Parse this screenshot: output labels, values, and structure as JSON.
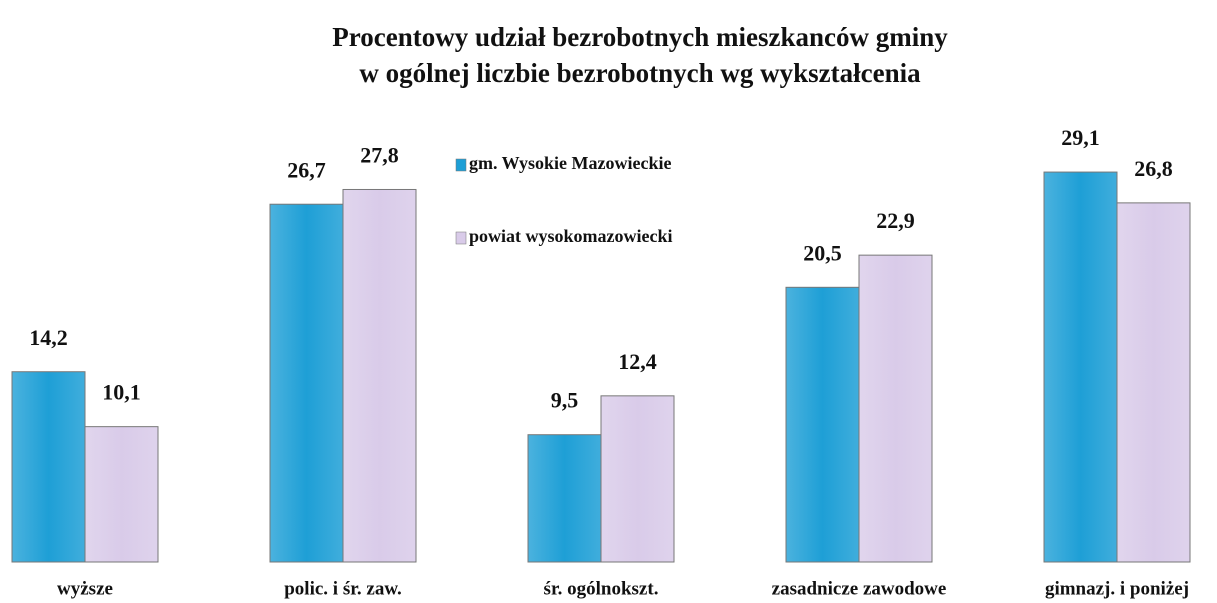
{
  "chart_data": {
    "type": "bar",
    "title": [
      "Procentowy udział bezrobotnych mieszkanców gminy",
      "w ogólnej liczbie bezrobotnych wg wykształcenia"
    ],
    "categories": [
      "wyższe",
      "polic. i śr. zaw.",
      "śr. ogólnokszt.",
      "zasadnicze zawodowe",
      "gimnazj. i poniżej"
    ],
    "series": [
      {
        "name": "gm. Wysokie Mazowieckie",
        "color": "#1e9fd6",
        "values": [
          14.2,
          26.7,
          9.5,
          20.5,
          29.1
        ],
        "value_labels": [
          "14,2",
          "26,7",
          "9,5",
          "20,5",
          "29,1"
        ]
      },
      {
        "name": "powiat wysokomazowiecki",
        "color": "#d9cbe9",
        "values": [
          10.1,
          27.8,
          12.4,
          22.9,
          26.8
        ],
        "value_labels": [
          "10,1",
          "27,8",
          "12,4",
          "22,9",
          "26,8"
        ]
      }
    ],
    "ylim": [
      0,
      30
    ],
    "legend": "top-center"
  }
}
